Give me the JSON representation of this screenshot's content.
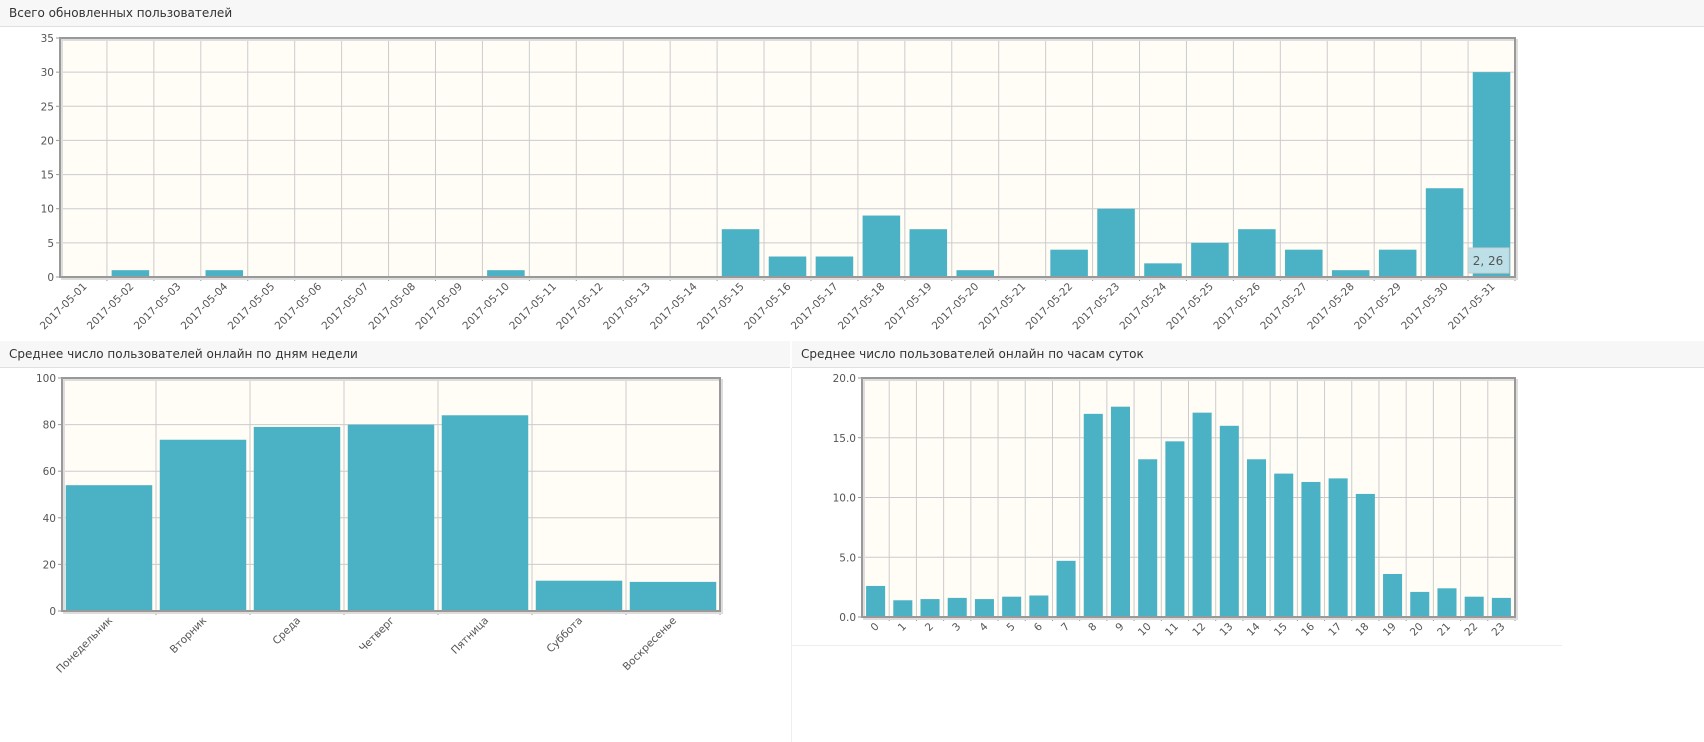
{
  "chart_data": [
    {
      "type": "bar",
      "title": "Всего обновленных пользователей",
      "categories": [
        "2017-05-01",
        "2017-05-02",
        "2017-05-03",
        "2017-05-04",
        "2017-05-05",
        "2017-05-06",
        "2017-05-07",
        "2017-05-08",
        "2017-05-09",
        "2017-05-10",
        "2017-05-11",
        "2017-05-12",
        "2017-05-13",
        "2017-05-14",
        "2017-05-15",
        "2017-05-16",
        "2017-05-17",
        "2017-05-18",
        "2017-05-19",
        "2017-05-20",
        "2017-05-21",
        "2017-05-22",
        "2017-05-23",
        "2017-05-24",
        "2017-05-25",
        "2017-05-26",
        "2017-05-27",
        "2017-05-28",
        "2017-05-29",
        "2017-05-30",
        "2017-05-31"
      ],
      "values": [
        0,
        1,
        0,
        1,
        0,
        0,
        0,
        0,
        0,
        1,
        0,
        0,
        0,
        0,
        7,
        3,
        3,
        9,
        7,
        1,
        0,
        4,
        10,
        2,
        5,
        7,
        4,
        1,
        4,
        13,
        30
      ],
      "ylim": [
        0,
        35
      ],
      "yticks": [
        "0",
        "5",
        "10",
        "15",
        "20",
        "25",
        "30",
        "35"
      ],
      "grid": true,
      "tooltip": "2, 26",
      "color": "#4bb2c5"
    },
    {
      "type": "bar",
      "title": "Среднее число пользователей онлайн по дням недели",
      "categories": [
        "Понедельник",
        "Вторник",
        "Среда",
        "Четверг",
        "Пятница",
        "Суббота",
        "Воскресенье"
      ],
      "values": [
        54,
        73.5,
        79,
        80,
        84,
        13,
        12.5
      ],
      "ylim": [
        0,
        100
      ],
      "yticks": [
        "0",
        "20",
        "40",
        "60",
        "80",
        "100"
      ],
      "grid": true,
      "color": "#4bb2c5"
    },
    {
      "type": "bar",
      "title": "Среднее число пользователей онлайн по часам суток",
      "categories": [
        "0",
        "1",
        "2",
        "3",
        "4",
        "5",
        "6",
        "7",
        "8",
        "9",
        "10",
        "11",
        "12",
        "13",
        "14",
        "15",
        "16",
        "17",
        "18",
        "19",
        "20",
        "21",
        "22",
        "23"
      ],
      "values": [
        2.6,
        1.4,
        1.5,
        1.6,
        1.5,
        1.7,
        1.8,
        4.7,
        17,
        17.6,
        13.2,
        14.7,
        17.1,
        16,
        13.2,
        12,
        11.3,
        11.6,
        10.3,
        3.6,
        2.1,
        2.4,
        1.7,
        1.6
      ],
      "ylim": [
        0,
        20
      ],
      "yticks": [
        "0.0",
        "5.0",
        "10.0",
        "15.0",
        "20.0"
      ],
      "grid": true,
      "color": "#4bb2c5"
    }
  ]
}
